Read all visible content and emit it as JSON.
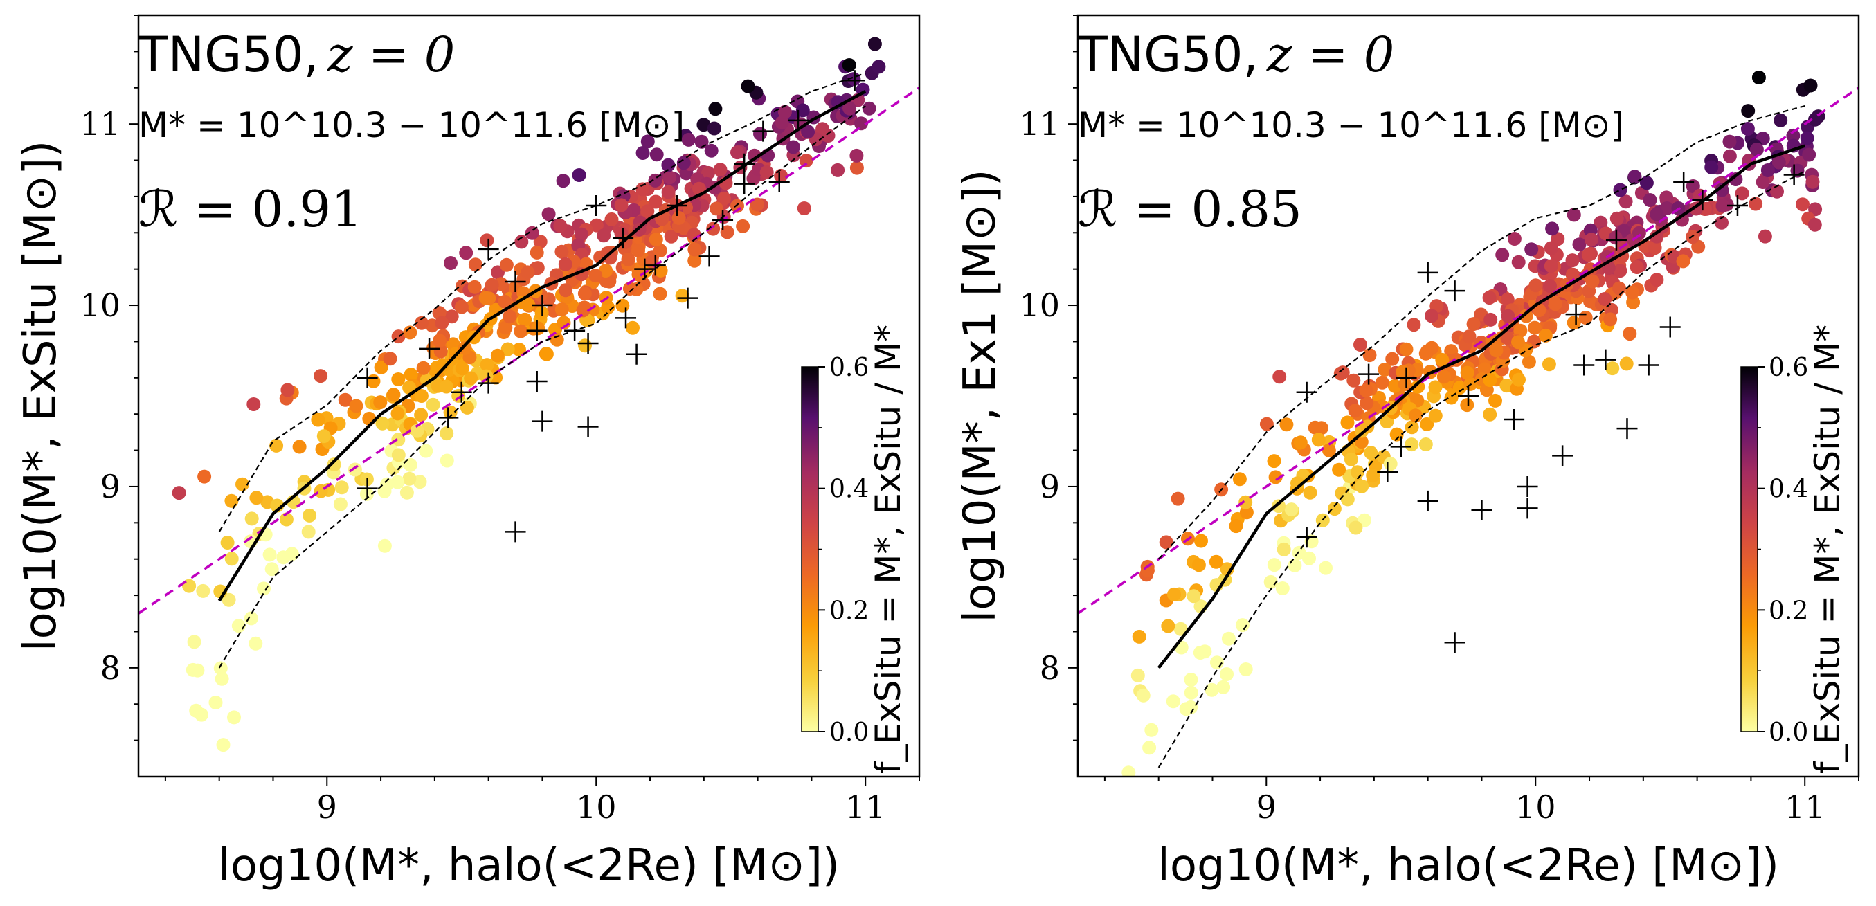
{
  "figure": {
    "colormap": "inferno",
    "marker_color": "#000000",
    "median_color": "#000000",
    "fit_color": "#c000c0"
  },
  "chart_data": [
    {
      "type": "scatter",
      "panel": "left",
      "annotation_sim": "TNG50,",
      "annotation_z": "z = 0",
      "annotation_mass": "M* = 10^10.3 − 10^11.6 [M⊙]",
      "annotation_r": "ℛ = 0.91",
      "r_value": 0.91,
      "xlabel": "log10(M*, halo(<2Re) [M⊙])",
      "ylabel": "log10(M*, ExSitu [M⊙])",
      "ylabel_sub": ", ExSitu",
      "xlim": [
        8.3,
        11.2
      ],
      "ylim": [
        7.4,
        11.6
      ],
      "xticks": [
        "9",
        "10",
        "11"
      ],
      "yticks": [
        "8",
        "9",
        "10",
        "11"
      ],
      "fit_line": {
        "x": [
          8.3,
          11.2
        ],
        "y": [
          8.3,
          11.2
        ]
      },
      "median": {
        "x": [
          8.6,
          8.8,
          9.0,
          9.2,
          9.4,
          9.6,
          9.8,
          10.0,
          10.2,
          10.4,
          10.6,
          10.8,
          11.0
        ],
        "y": [
          8.37,
          8.85,
          9.1,
          9.4,
          9.6,
          9.92,
          10.1,
          10.22,
          10.48,
          10.62,
          10.82,
          11.02,
          11.18
        ]
      },
      "pct_high": {
        "x": [
          8.6,
          8.8,
          9.0,
          9.2,
          9.4,
          9.6,
          9.8,
          10.0,
          10.2,
          10.4,
          10.6,
          10.8,
          11.0
        ],
        "y": [
          8.75,
          9.25,
          9.45,
          9.75,
          9.98,
          10.25,
          10.45,
          10.55,
          10.68,
          10.88,
          11.02,
          11.18,
          11.28
        ]
      },
      "pct_low": {
        "x": [
          8.6,
          8.8,
          9.0,
          9.2,
          9.4,
          9.6,
          9.8,
          10.0,
          10.2,
          10.4,
          10.6,
          10.8,
          11.0
        ],
        "y": [
          8.0,
          8.5,
          8.75,
          9.0,
          9.3,
          9.6,
          9.8,
          9.9,
          10.18,
          10.4,
          10.65,
          10.88,
          11.1
        ]
      },
      "crosses": [
        [
          9.15,
          8.99
        ],
        [
          9.15,
          9.6
        ],
        [
          9.38,
          9.76
        ],
        [
          9.45,
          9.38
        ],
        [
          9.5,
          9.52
        ],
        [
          9.6,
          9.57
        ],
        [
          9.7,
          10.13
        ],
        [
          9.78,
          9.86
        ],
        [
          9.8,
          9.36
        ],
        [
          9.78,
          9.58
        ],
        [
          9.92,
          9.86
        ],
        [
          9.97,
          9.33
        ],
        [
          9.97,
          9.79
        ],
        [
          10.1,
          10.37
        ],
        [
          10.11,
          9.93
        ],
        [
          10.15,
          9.73
        ],
        [
          10.18,
          10.2
        ],
        [
          10.22,
          10.22
        ],
        [
          10.34,
          10.04
        ],
        [
          10.42,
          10.27
        ],
        [
          10.47,
          10.47
        ],
        [
          10.55,
          10.67
        ],
        [
          10.62,
          10.96
        ],
        [
          10.68,
          10.68
        ],
        [
          10.75,
          11.02
        ],
        [
          9.7,
          8.75
        ],
        [
          9.6,
          10.31
        ],
        [
          10.0,
          10.55
        ],
        [
          10.3,
          10.55
        ],
        [
          10.96,
          11.24
        ],
        [
          10.55,
          10.78
        ],
        [
          9.8,
          10.0
        ]
      ],
      "colorbar": {
        "label": "f_ExSitu = M*, ExSitu / M*",
        "min": 0.0,
        "max": 0.6,
        "ticks": [
          "0.0",
          "0.2",
          "0.4",
          "0.6"
        ]
      }
    },
    {
      "type": "scatter",
      "panel": "right",
      "annotation_sim": "TNG50,",
      "annotation_z": "z = 0",
      "annotation_mass": "M* = 10^10.3 − 10^11.6 [M⊙]",
      "annotation_r": "ℛ = 0.85",
      "r_value": 0.85,
      "xlabel": "log10(M*, halo(<2Re) [M⊙])",
      "ylabel": "log10(M*, Ex1 [M⊙])",
      "ylabel_sub": ", Ex1",
      "xlim": [
        8.3,
        11.2
      ],
      "ylim": [
        7.4,
        11.6
      ],
      "xticks": [
        "9",
        "10",
        "11"
      ],
      "yticks": [
        "8",
        "9",
        "10",
        "11"
      ],
      "fit_line": {
        "x": [
          8.3,
          11.2
        ],
        "y": [
          8.3,
          11.2
        ]
      },
      "median": {
        "x": [
          8.6,
          8.8,
          9.0,
          9.2,
          9.4,
          9.6,
          9.8,
          10.0,
          10.2,
          10.4,
          10.6,
          10.8,
          11.0
        ],
        "y": [
          8.0,
          8.38,
          8.85,
          9.1,
          9.35,
          9.62,
          9.75,
          10.0,
          10.18,
          10.35,
          10.55,
          10.78,
          10.88
        ]
      },
      "pct_high": {
        "x": [
          8.6,
          8.8,
          9.0,
          9.2,
          9.4,
          9.6,
          9.8,
          10.0,
          10.2,
          10.4,
          10.6,
          10.8,
          11.0
        ],
        "y": [
          8.6,
          8.92,
          9.3,
          9.55,
          9.78,
          10.05,
          10.3,
          10.48,
          10.55,
          10.7,
          10.9,
          11.02,
          11.1
        ]
      },
      "pct_low": {
        "x": [
          8.6,
          8.8,
          9.0,
          9.2,
          9.4,
          9.6,
          9.8,
          10.0,
          10.2,
          10.4,
          10.6,
          10.8,
          11.0
        ],
        "y": [
          7.45,
          7.95,
          8.4,
          8.8,
          9.15,
          9.42,
          9.6,
          9.78,
          9.9,
          10.18,
          10.4,
          10.58,
          10.74
        ]
      },
      "crosses": [
        [
          9.15,
          9.52
        ],
        [
          9.15,
          8.72
        ],
        [
          9.38,
          9.62
        ],
        [
          9.45,
          9.08
        ],
        [
          9.5,
          9.22
        ],
        [
          9.52,
          9.6
        ],
        [
          9.6,
          8.92
        ],
        [
          9.6,
          10.18
        ],
        [
          9.7,
          10.08
        ],
        [
          9.75,
          9.5
        ],
        [
          9.8,
          8.87
        ],
        [
          9.92,
          9.37
        ],
        [
          9.97,
          8.88
        ],
        [
          9.97,
          9.0
        ],
        [
          10.1,
          9.17
        ],
        [
          10.15,
          9.95
        ],
        [
          10.18,
          9.67
        ],
        [
          10.26,
          9.7
        ],
        [
          10.34,
          9.32
        ],
        [
          10.42,
          9.67
        ],
        [
          10.5,
          9.88
        ],
        [
          10.55,
          10.68
        ],
        [
          10.62,
          10.58
        ],
        [
          10.75,
          10.55
        ],
        [
          10.96,
          10.72
        ],
        [
          9.7,
          8.14
        ],
        [
          10.3,
          10.36
        ]
      ],
      "colorbar": {
        "label": "f_ExSitu = M*, ExSitu / M*",
        "min": 0.0,
        "max": 0.6,
        "ticks": [
          "0.0",
          "0.2",
          "0.4",
          "0.6"
        ]
      }
    }
  ]
}
